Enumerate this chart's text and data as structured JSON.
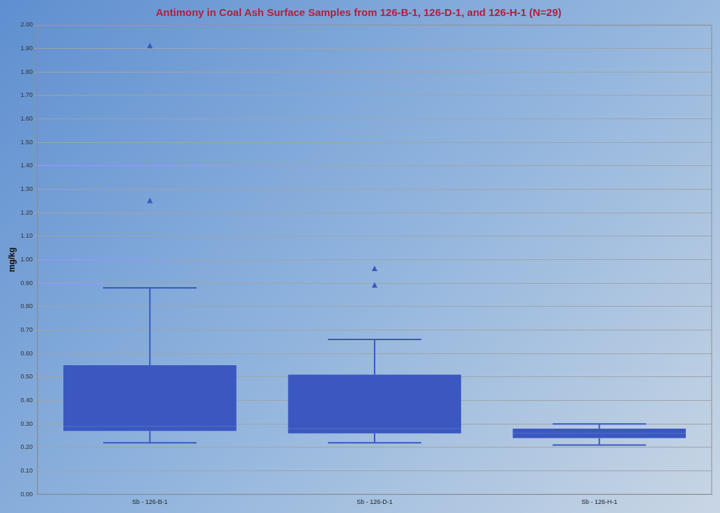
{
  "chart_data": {
    "type": "box",
    "title": "Antimony in Coal Ash Surface Samples from 126-B-1, 126-D-1, and 126-H-1 (N=29)",
    "ylabel": "mg/kg",
    "categories": [
      "Sb - 126-B-1",
      "Sb - 126-D-1",
      "Sb - 126-H-1"
    ],
    "color": "#3a58c0",
    "boxes": [
      {
        "low": 0.22,
        "q1": 0.27,
        "median": 0.29,
        "q3": 0.55,
        "high": 0.88,
        "outliers": [
          1.25,
          1.91
        ]
      },
      {
        "low": 0.22,
        "q1": 0.26,
        "median": 0.28,
        "q3": 0.51,
        "high": 0.66,
        "outliers": [
          0.89,
          0.96
        ]
      },
      {
        "low": 0.21,
        "q1": 0.24,
        "median": 0.26,
        "q3": 0.28,
        "high": 0.3
      }
    ],
    "ylim": [
      0,
      2
    ],
    "yticks": [
      {
        "value": 0,
        "label": "0.00"
      },
      {
        "value": 0.1,
        "label": "0.10"
      },
      {
        "value": 0.2,
        "label": "0.20"
      },
      {
        "value": 0.3,
        "label": "0.30"
      },
      {
        "value": 0.4,
        "label": "0.40"
      },
      {
        "value": 0.5,
        "label": "0.50"
      },
      {
        "value": 0.6,
        "label": "0.60"
      },
      {
        "value": 0.7,
        "label": "0.70"
      },
      {
        "value": 0.8,
        "label": "0.80"
      },
      {
        "value": 0.9,
        "label": "0.90"
      },
      {
        "value": 1,
        "label": "1.00"
      },
      {
        "value": 1.1,
        "label": "1.10"
      },
      {
        "value": 1.2,
        "label": "1.20"
      },
      {
        "value": 1.3,
        "label": "1.30"
      },
      {
        "value": 1.4,
        "label": "1.40"
      },
      {
        "value": 1.5,
        "label": "1.50"
      },
      {
        "value": 1.6,
        "label": "1.60"
      },
      {
        "value": 1.7,
        "label": "1.70"
      },
      {
        "value": 1.8,
        "label": "1.80"
      },
      {
        "value": 1.9,
        "label": "1.90"
      },
      {
        "value": 2,
        "label": "2.00"
      }
    ],
    "grid": "y",
    "legend": false,
    "marker": "triangle"
  }
}
